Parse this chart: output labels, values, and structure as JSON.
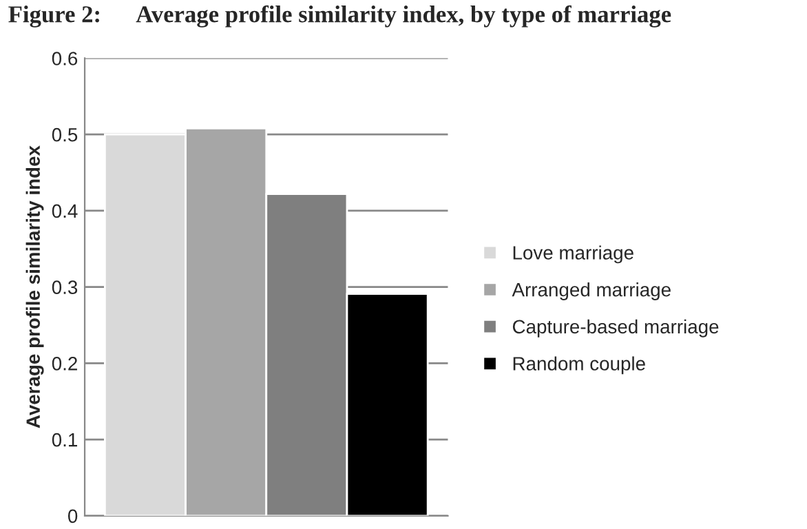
{
  "chart_data": {
    "type": "bar",
    "title": "Figure 2:      Average profile similarity index, by type of marriage",
    "ylabel": "Average profile similarity index",
    "categories": [
      null
    ],
    "series": [
      {
        "name": "Love marriage",
        "color": "#d9d9d9",
        "values": [
          0.5
        ]
      },
      {
        "name": "Arranged marriage",
        "color": "#a6a6a6",
        "values": [
          0.508
        ]
      },
      {
        "name": "Capture-based marriage",
        "color": "#7f7f7f",
        "values": [
          0.422
        ]
      },
      {
        "name": "Random couple",
        "color": "#000000",
        "values": [
          0.291
        ]
      }
    ],
    "ylim": [
      0,
      0.6
    ],
    "yticks": [
      {
        "value": 0,
        "label": "0"
      },
      0.1,
      0.2,
      0.3,
      0.4,
      0.5,
      0.6
    ],
    "grid": "y",
    "legend": "right"
  }
}
